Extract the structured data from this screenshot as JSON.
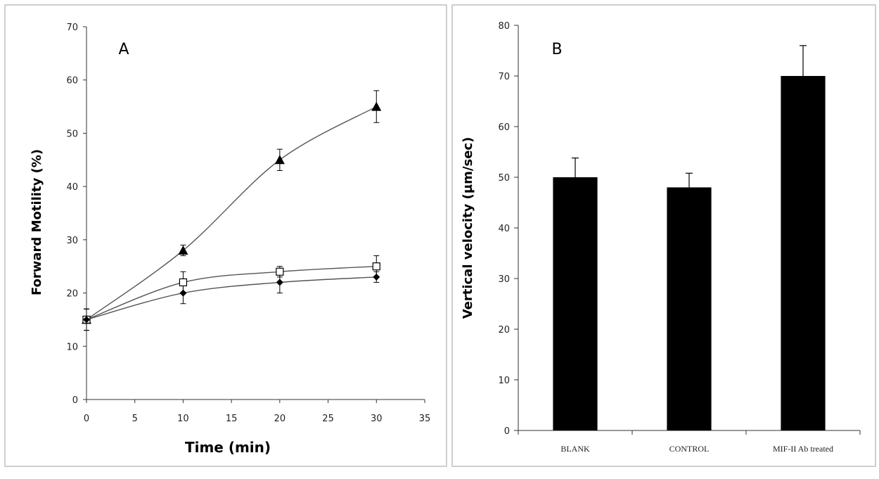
{
  "chart_data": [
    {
      "panel_label": "A",
      "type": "line",
      "xlabel": "Time (min)",
      "ylabel": "Forward Motility  (%)",
      "xlim": [
        0,
        35
      ],
      "ylim": [
        0,
        70
      ],
      "x_ticks": [
        0,
        5,
        10,
        15,
        20,
        25,
        30,
        35
      ],
      "y_ticks": [
        0,
        10,
        20,
        30,
        40,
        50,
        60,
        70
      ],
      "grid": false,
      "x": [
        0,
        10,
        20,
        30
      ],
      "series": [
        {
          "marker": "triangle",
          "values": [
            15,
            28,
            45,
            55
          ],
          "errors": [
            2,
            1,
            2,
            3
          ]
        },
        {
          "marker": "open-square",
          "values": [
            15,
            22,
            24,
            25
          ],
          "errors": [
            2,
            2,
            1,
            2
          ]
        },
        {
          "marker": "diamond",
          "values": [
            15,
            20,
            22,
            23
          ],
          "errors": [
            2,
            2,
            2,
            1
          ]
        }
      ]
    },
    {
      "panel_label": "B",
      "type": "bar",
      "ylabel": "Vertical     velocity (µm/sec)",
      "ylim": [
        0,
        80
      ],
      "y_ticks": [
        0,
        10,
        20,
        30,
        40,
        50,
        60,
        70,
        80
      ],
      "grid": false,
      "categories": [
        "BLANK",
        "CONTROL",
        "MIF-II Ab treated"
      ],
      "values": [
        50,
        48,
        70
      ],
      "errors": [
        3.8,
        2.8,
        6
      ],
      "bar_color": "#000000"
    }
  ]
}
